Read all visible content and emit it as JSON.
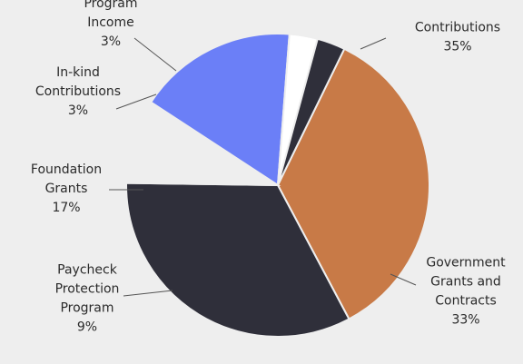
{
  "chart_data": {
    "type": "pie",
    "title": "",
    "slices": [
      {
        "label": [
          "Contributions"
        ],
        "value": 35,
        "pct_text": "35%",
        "color": "#c87a47"
      },
      {
        "label": [
          "Government",
          "Grants and",
          "Contracts"
        ],
        "value": 33,
        "pct_text": "33%",
        "color": "#2f2f3a"
      },
      {
        "label": [
          "Paycheck",
          "Protection",
          "Program"
        ],
        "value": 9,
        "pct_text": "9%",
        "color": "#eeeeee"
      },
      {
        "label": [
          "Foundation",
          "Grants"
        ],
        "value": 17,
        "pct_text": "17%",
        "color": "#6b7ff7"
      },
      {
        "label": [
          "In-kind",
          "Contributions"
        ],
        "value": 3,
        "pct_text": "3%",
        "color": "#ffffff"
      },
      {
        "label": [
          "Program",
          "Income"
        ],
        "value": 3,
        "pct_text": "3%",
        "color": "#2f2f3a"
      }
    ]
  }
}
